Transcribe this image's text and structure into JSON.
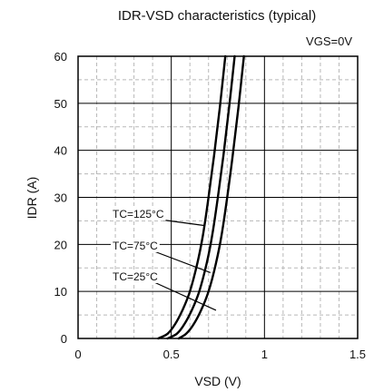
{
  "chart_data": {
    "type": "line",
    "title": "IDR-VSD characteristics (typical)",
    "condition": "VGS=0V",
    "xlabel": "VSD (V)",
    "ylabel": "IDR (A)",
    "xlim": [
      0,
      1.5
    ],
    "ylim": [
      0,
      60
    ],
    "x_ticks": [
      0,
      0.5,
      1,
      1.5
    ],
    "x_tick_labels": [
      "0",
      "0.5",
      "1",
      "1.5"
    ],
    "y_ticks": [
      0,
      10,
      20,
      30,
      40,
      50,
      60
    ],
    "y_tick_labels": [
      "0",
      "10",
      "20",
      "30",
      "40",
      "50",
      "60"
    ],
    "grid": true,
    "series": [
      {
        "name": "TC=125°C",
        "x": [
          0.43,
          0.48,
          0.52,
          0.56,
          0.6,
          0.64,
          0.67,
          0.7,
          0.73,
          0.76,
          0.79
        ],
        "y": [
          0,
          1,
          3,
          6,
          10,
          16,
          22,
          30,
          39,
          49,
          60
        ]
      },
      {
        "name": "TC=75°C",
        "x": [
          0.48,
          0.53,
          0.57,
          0.61,
          0.65,
          0.69,
          0.72,
          0.75,
          0.78,
          0.81,
          0.84
        ],
        "y": [
          0,
          1,
          3,
          6,
          10,
          16,
          22,
          30,
          39,
          49,
          60
        ]
      },
      {
        "name": "TC=25°C",
        "x": [
          0.54,
          0.58,
          0.62,
          0.66,
          0.7,
          0.74,
          0.77,
          0.8,
          0.83,
          0.86,
          0.89
        ],
        "y": [
          0,
          1,
          3,
          6,
          10,
          16,
          22,
          30,
          39,
          49,
          60
        ]
      }
    ],
    "annotations": [
      {
        "text": "TC=125°C",
        "series": "TC=125°C",
        "arrow_to": [
          0.68,
          24
        ]
      },
      {
        "text": "TC=75°C",
        "series": "TC=75°C",
        "arrow_to": [
          0.71,
          14
        ]
      },
      {
        "text": "TC=25°C",
        "series": "TC=25°C",
        "arrow_to": [
          0.74,
          6
        ]
      }
    ]
  }
}
